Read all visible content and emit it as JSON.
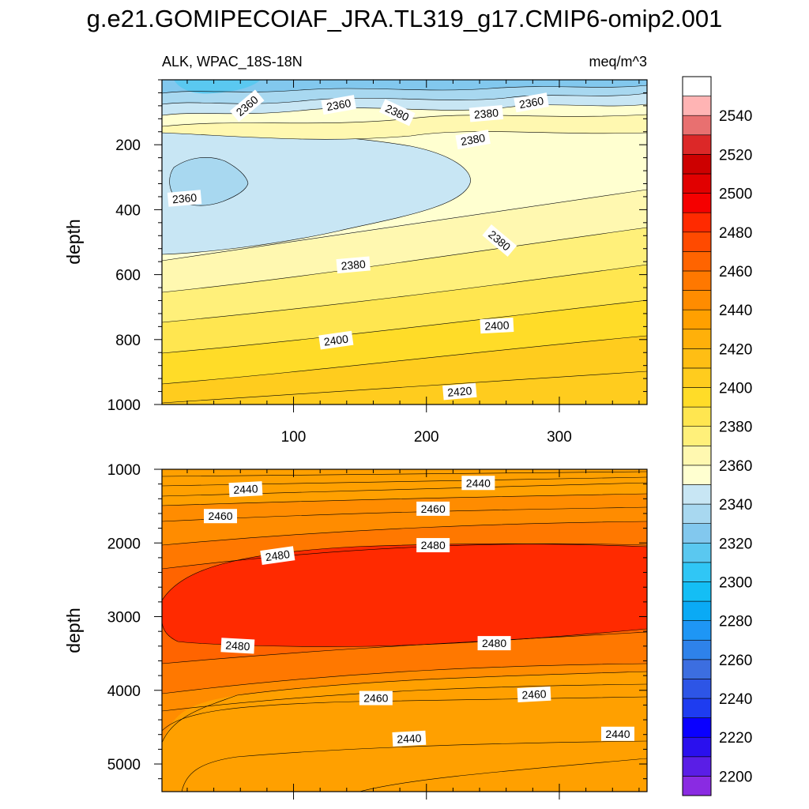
{
  "title": "g.e21.GOMIPECOIAF_JRA.TL319_g17.CMIP6-omip2.001",
  "colors": {
    "palette": [
      "#8a2be2",
      "#5a1ee6",
      "#2a10ee",
      "#0a00ff",
      "#1e3cf0",
      "#2d55e6",
      "#3c6ee0",
      "#2e82ea",
      "#1e96f5",
      "#0aaaf5",
      "#14bef5",
      "#30c6f5",
      "#5ac8f0",
      "#82c8ee",
      "#a8d8f0",
      "#c8e6f4",
      "#ffffd0",
      "#fff8b0",
      "#fff07a",
      "#ffe650",
      "#ffdc28",
      "#ffcc1e",
      "#ffbe14",
      "#ffb00a",
      "#ffa000",
      "#ff8c00",
      "#ff7800",
      "#ff6400",
      "#ff4a00",
      "#ff2a00",
      "#f50000",
      "#e10000",
      "#cd0000",
      "#dc2828",
      "#e87070",
      "#ffb4b4"
    ]
  },
  "chart_data": {
    "type": "contour",
    "variable": "ALK, WPAC_18S-18N",
    "units": "meq/m^3",
    "colorbar": {
      "min": 2190,
      "max": 2560,
      "step": 10,
      "ticks": [
        2200,
        2220,
        2240,
        2260,
        2280,
        2300,
        2320,
        2340,
        2360,
        2380,
        2400,
        2420,
        2440,
        2460,
        2480,
        2500,
        2520,
        2540
      ],
      "tick_labels": [
        "2200",
        "2220",
        "2240",
        "2260",
        "2280",
        "2300",
        "2320",
        "2340",
        "2360",
        "2380",
        "2400",
        "2420",
        "2440",
        "2460",
        "2480",
        "2500",
        "2520",
        "2540"
      ]
    },
    "panels": [
      {
        "name": "upper",
        "subtitle_left": "ALK, WPAC_18S-18N",
        "subtitle_right": "meq/m^3",
        "ylabel": "depth",
        "xlim": [
          1,
          366
        ],
        "ylim": [
          0,
          1000
        ],
        "x_ticks": [
          100,
          200,
          300
        ],
        "x_tick_labels": [
          "100",
          "200",
          "300"
        ],
        "y_ticks": [
          200,
          400,
          600,
          800,
          1000
        ],
        "y_tick_labels": [
          "200",
          "400",
          "600",
          "800",
          "1000"
        ],
        "contour_labels": [
          {
            "text": "2360",
            "x": 65,
            "y": 80,
            "rot": -40
          },
          {
            "text": "2360",
            "x": 134,
            "y": 77,
            "rot": -10
          },
          {
            "text": "2380",
            "x": 178,
            "y": 101,
            "rot": 25
          },
          {
            "text": "2380",
            "x": 245,
            "y": 104,
            "rot": -5
          },
          {
            "text": "2360",
            "x": 279,
            "y": 70,
            "rot": -10
          },
          {
            "text": "2380",
            "x": 235,
            "y": 184,
            "rot": -10
          },
          {
            "text": "2360",
            "x": 18,
            "y": 365,
            "rot": -5
          },
          {
            "text": "2380",
            "x": 255,
            "y": 495,
            "rot": 40
          },
          {
            "text": "2380",
            "x": 145,
            "y": 570,
            "rot": -5
          },
          {
            "text": "2400",
            "x": 253,
            "y": 757,
            "rot": -3
          },
          {
            "text": "2400",
            "x": 132,
            "y": 802,
            "rot": -8
          },
          {
            "text": "2420",
            "x": 225,
            "y": 960,
            "rot": -5
          }
        ]
      },
      {
        "name": "lower",
        "ylabel": "depth",
        "xlim": [
          1,
          366
        ],
        "ylim": [
          1000,
          5375
        ],
        "y_ticks": [
          1000,
          2000,
          3000,
          4000,
          5000
        ],
        "y_tick_labels": [
          "1000",
          "2000",
          "3000",
          "4000",
          "5000"
        ],
        "contour_labels": [
          {
            "text": "2440",
            "x": 64,
            "y": 1270,
            "rot": -3
          },
          {
            "text": "2440",
            "x": 239,
            "y": 1185,
            "rot": 0
          },
          {
            "text": "2460",
            "x": 45,
            "y": 1635,
            "rot": 0
          },
          {
            "text": "2460",
            "x": 205,
            "y": 1535,
            "rot": 0
          },
          {
            "text": "2480",
            "x": 88,
            "y": 2170,
            "rot": -8
          },
          {
            "text": "2480",
            "x": 205,
            "y": 2030,
            "rot": 0
          },
          {
            "text": "2480",
            "x": 58,
            "y": 3395,
            "rot": 3
          },
          {
            "text": "2480",
            "x": 251,
            "y": 3360,
            "rot": 0
          },
          {
            "text": "2460",
            "x": 162,
            "y": 4105,
            "rot": 0
          },
          {
            "text": "2460",
            "x": 281,
            "y": 4055,
            "rot": -3
          },
          {
            "text": "2440",
            "x": 187,
            "y": 4655,
            "rot": -3
          },
          {
            "text": "2440",
            "x": 344,
            "y": 4590,
            "rot": 0
          }
        ]
      }
    ]
  }
}
